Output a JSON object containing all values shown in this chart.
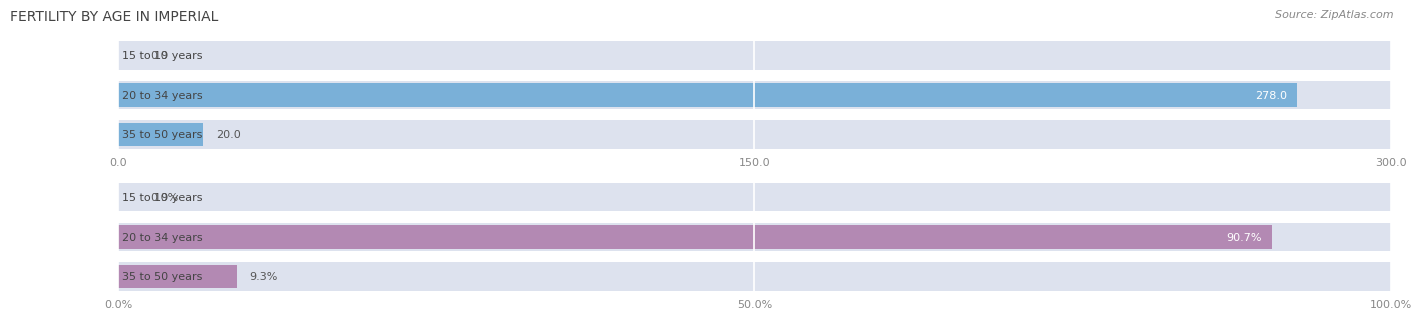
{
  "title": "FERTILITY BY AGE IN IMPERIAL",
  "source": "Source: ZipAtlas.com",
  "top_chart": {
    "categories": [
      "15 to 19 years",
      "20 to 34 years",
      "35 to 50 years"
    ],
    "values": [
      0.0,
      278.0,
      20.0
    ],
    "max_value": 300.0,
    "x_ticks": [
      0.0,
      150.0,
      300.0
    ],
    "x_tick_labels": [
      "0.0",
      "150.0",
      "300.0"
    ],
    "bar_color": "#7ab0d8",
    "bg_color": "#dde2ee"
  },
  "bottom_chart": {
    "categories": [
      "15 to 19 years",
      "20 to 34 years",
      "35 to 50 years"
    ],
    "values": [
      0.0,
      90.7,
      9.3
    ],
    "max_value": 100.0,
    "x_ticks": [
      0.0,
      50.0,
      100.0
    ],
    "x_tick_labels": [
      "0.0%",
      "50.0%",
      "100.0%"
    ],
    "bar_color": "#b389b3",
    "bg_color": "#dde2ee"
  },
  "value_labels_top": [
    "0.0",
    "278.0",
    "20.0"
  ],
  "value_labels_bottom": [
    "0.0%",
    "90.7%",
    "9.3%"
  ],
  "title_fontsize": 10,
  "source_fontsize": 8,
  "tick_fontsize": 8,
  "label_fontsize": 8,
  "cat_fontsize": 8,
  "title_color": "#444444",
  "source_color": "#888888",
  "tick_color": "#888888",
  "background_color": "#ffffff",
  "bar_height": 0.6,
  "grid_color": "#ffffff"
}
